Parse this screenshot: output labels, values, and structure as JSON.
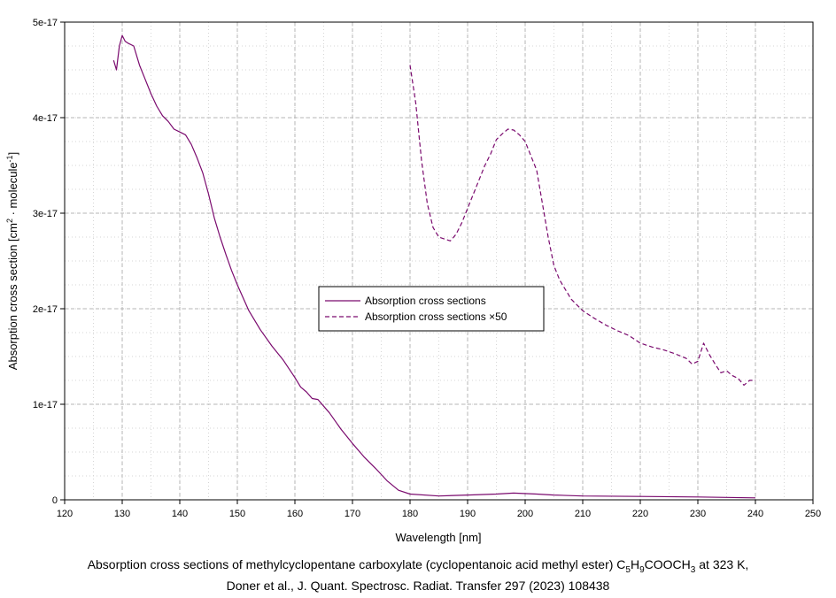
{
  "chart_data": {
    "type": "line",
    "xlabel": "Wavelength [nm]",
    "ylabel_parts": [
      "Absorption cross section [cm",
      "2",
      " · molecule",
      "-1",
      "]"
    ],
    "xlim": [
      120,
      250
    ],
    "ylim": [
      0,
      5e-17
    ],
    "x_ticks": [
      120,
      130,
      140,
      150,
      160,
      170,
      180,
      190,
      200,
      210,
      220,
      230,
      240,
      250
    ],
    "x_tick_labels": [
      "120",
      "130",
      "140",
      "150",
      "160",
      "170",
      "180",
      "190",
      "200",
      "210",
      "220",
      "230",
      "240",
      "250"
    ],
    "y_ticks": [
      0,
      1e-17,
      2e-17,
      3e-17,
      4e-17,
      5e-17
    ],
    "y_tick_labels": [
      "0",
      "1e-17",
      "2e-17",
      "3e-17",
      "4e-17",
      "5e-17"
    ],
    "grid": true,
    "legend_position": "center",
    "series": [
      {
        "name": "Absorption cross sections",
        "color": "#7a0a6e",
        "dash": "solid",
        "x": [
          128.5,
          129,
          129.5,
          130,
          130.5,
          131,
          132,
          133,
          134,
          135,
          136,
          137,
          138,
          139,
          140,
          141,
          142,
          143,
          144,
          145,
          146,
          147,
          148,
          149,
          150,
          152,
          154,
          156,
          158,
          160,
          161,
          162,
          163,
          164,
          165,
          166,
          168,
          170,
          172,
          174,
          176,
          178,
          180,
          185,
          190,
          195,
          198,
          202,
          205,
          210,
          220,
          230,
          235,
          240
        ],
        "y": [
          4.6e-17,
          4.5e-17,
          4.75e-17,
          4.86e-17,
          4.8e-17,
          4.78e-17,
          4.75e-17,
          4.55e-17,
          4.4e-17,
          4.25e-17,
          4.12e-17,
          4.02e-17,
          3.96e-17,
          3.88e-17,
          3.85e-17,
          3.82e-17,
          3.72e-17,
          3.58e-17,
          3.42e-17,
          3.2e-17,
          2.95e-17,
          2.75e-17,
          2.57e-17,
          2.4e-17,
          2.25e-17,
          1.98e-17,
          1.78e-17,
          1.61e-17,
          1.46e-17,
          1.28e-17,
          1.18e-17,
          1.13e-17,
          1.06e-17,
          1.05e-17,
          9.8e-18,
          9.1e-18,
          7.4e-18,
          5.9e-18,
          4.5e-18,
          3.3e-18,
          2e-18,
          1e-18,
          6e-19,
          4e-19,
          5e-19,
          6e-19,
          7e-19,
          6e-19,
          5e-19,
          4e-19,
          3.5e-19,
          3e-19,
          2.5e-19,
          2e-19
        ]
      },
      {
        "name": "Absorption cross sections ×50",
        "color": "#7a0a6e",
        "dash": "dashed",
        "x": [
          180,
          181,
          182,
          183,
          184,
          185,
          186,
          187,
          188,
          189,
          190,
          191,
          192,
          193,
          194,
          195,
          196,
          197,
          198,
          199,
          200,
          201,
          202,
          203,
          204,
          205,
          206,
          208,
          210,
          212,
          214,
          216,
          218,
          220,
          222,
          224,
          226,
          228,
          229,
          230,
          231,
          232,
          233,
          234,
          235,
          236,
          237,
          238,
          239,
          240
        ],
        "y": [
          4.55e-17,
          4.15e-17,
          3.55e-17,
          3.1e-17,
          2.85e-17,
          2.75e-17,
          2.73e-17,
          2.71e-17,
          2.78e-17,
          2.9e-17,
          3.05e-17,
          3.2e-17,
          3.35e-17,
          3.5e-17,
          3.62e-17,
          3.77e-17,
          3.83e-17,
          3.88e-17,
          3.87e-17,
          3.82e-17,
          3.75e-17,
          3.6e-17,
          3.45e-17,
          3.1e-17,
          2.75e-17,
          2.45e-17,
          2.3e-17,
          2.1e-17,
          1.98e-17,
          1.9e-17,
          1.83e-17,
          1.77e-17,
          1.72e-17,
          1.64e-17,
          1.6e-17,
          1.57e-17,
          1.53e-17,
          1.48e-17,
          1.42e-17,
          1.45e-17,
          1.64e-17,
          1.52e-17,
          1.42e-17,
          1.33e-17,
          1.35e-17,
          1.3e-17,
          1.27e-17,
          1.2e-17,
          1.25e-17,
          1.25e-17
        ]
      }
    ]
  },
  "caption": {
    "line1_before": "Absorption cross sections of methylcyclopentane carboxylate (cyclopentanoic acid methyl ester) C",
    "sub1": "5",
    "mid1": "H",
    "sub2": "9",
    "mid2": "COOCH",
    "sub3": "3",
    "line1_after": " at 323 K,",
    "line2": "Doner et al., J. Quant. Spectrosc. Radiat. Transfer 297 (2023) 108438"
  }
}
